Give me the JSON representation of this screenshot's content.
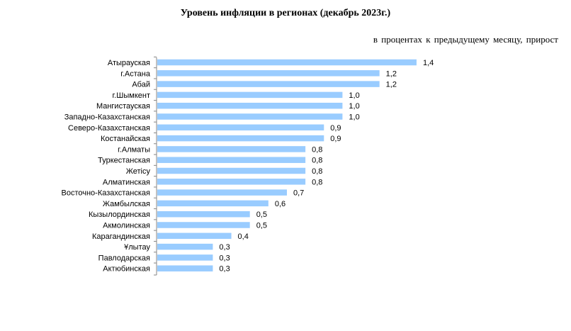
{
  "chart_data": {
    "type": "bar",
    "orientation": "horizontal",
    "title": "Уровень инфляции в регионах (декабрь 2023г.)",
    "subtitle": "в процентах к предыдущему месяцу, прирост",
    "categories": [
      "Атырауская",
      "г.Астана",
      "Абай",
      "г.Шымкент",
      "Мангистауская",
      "Западно-Казахстанская",
      "Северо-Казахстанская",
      "Костанайская",
      "г.Алматы",
      "Туркестанская",
      "Жетiсу",
      "Алматинская",
      "Восточно-Казахстанская",
      "Жамбылская",
      "Кызылординская",
      "Акмолинская",
      "Карагандинская",
      "Ұлытау",
      "Павлодарская",
      "Актюбинская"
    ],
    "values": [
      1.4,
      1.2,
      1.2,
      1.0,
      1.0,
      1.0,
      0.9,
      0.9,
      0.8,
      0.8,
      0.8,
      0.8,
      0.7,
      0.6,
      0.5,
      0.5,
      0.4,
      0.3,
      0.3,
      0.3
    ],
    "data_labels": [
      "1,4",
      "1,2",
      "1,2",
      "1,0",
      "1,0",
      "1,0",
      "0,9",
      "0,9",
      "0,8",
      "0,8",
      "0,8",
      "0,8",
      "0,7",
      "0,6",
      "0,5",
      "0,5",
      "0,4",
      "0,3",
      "0,3",
      "0,3"
    ],
    "xlim": [
      0,
      1.4
    ],
    "grid": false,
    "legend": "none",
    "bar_color": "#99CCFF",
    "axis_color": "#868686"
  }
}
